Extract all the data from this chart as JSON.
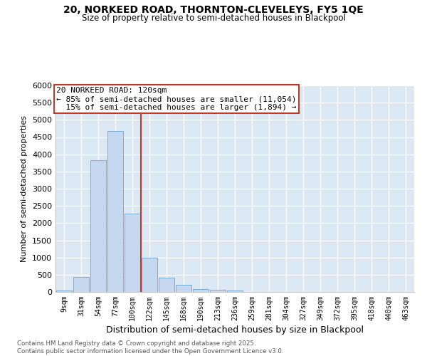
{
  "title1": "20, NORKEED ROAD, THORNTON-CLEVELEYS, FY5 1QE",
  "title2": "Size of property relative to semi-detached houses in Blackpool",
  "xlabel": "Distribution of semi-detached houses by size in Blackpool",
  "ylabel": "Number of semi-detached properties",
  "categories": [
    "9sqm",
    "31sqm",
    "54sqm",
    "77sqm",
    "100sqm",
    "122sqm",
    "145sqm",
    "168sqm",
    "190sqm",
    "213sqm",
    "236sqm",
    "259sqm",
    "281sqm",
    "304sqm",
    "327sqm",
    "349sqm",
    "372sqm",
    "395sqm",
    "418sqm",
    "440sqm",
    "463sqm"
  ],
  "values": [
    40,
    430,
    3820,
    4680,
    2280,
    1000,
    410,
    200,
    80,
    70,
    40,
    0,
    0,
    0,
    0,
    0,
    0,
    0,
    0,
    0,
    0
  ],
  "bar_color": "#c5d8f0",
  "bar_edge_color": "#7aadd4",
  "property_size": "120sqm",
  "pct_smaller": 85,
  "n_smaller": 11054,
  "pct_larger": 15,
  "n_larger": 1894,
  "vline_color": "#c0392b",
  "annotation_box_color": "#c0392b",
  "ylim": [
    0,
    6000
  ],
  "yticks": [
    0,
    500,
    1000,
    1500,
    2000,
    2500,
    3000,
    3500,
    4000,
    4500,
    5000,
    5500,
    6000
  ],
  "bg_color": "#dde8f5",
  "footer1": "Contains HM Land Registry data © Crown copyright and database right 2025.",
  "footer2": "Contains public sector information licensed under the Open Government Licence v3.0."
}
